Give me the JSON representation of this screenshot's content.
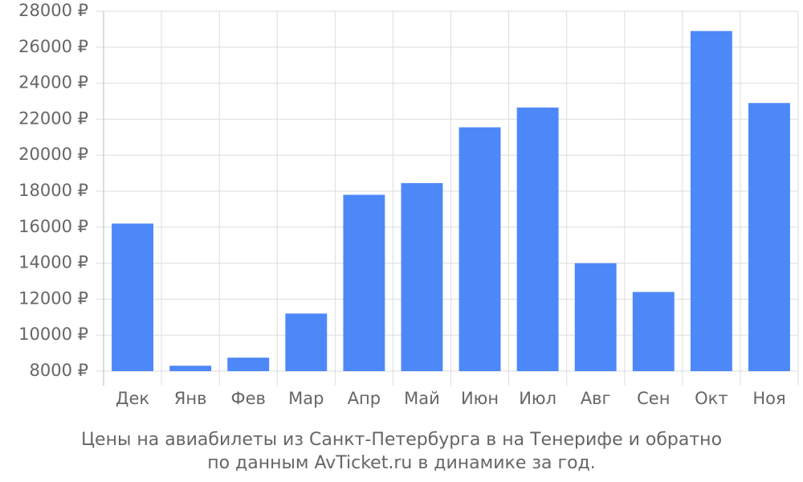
{
  "chart_data": {
    "type": "bar",
    "title": [
      "Цены на авиабилеты из Санкт-Петербурга в на Тенерифе и обратно",
      "по данным AvTicket.ru в динамике за год."
    ],
    "categories": [
      "Дек",
      "Янв",
      "Фев",
      "Мар",
      "Апр",
      "Май",
      "Июн",
      "Июл",
      "Авг",
      "Сен",
      "Окт",
      "Ноя"
    ],
    "values": [
      16200,
      8300,
      8750,
      11200,
      17800,
      18450,
      21550,
      22650,
      14000,
      12400,
      26900,
      22900
    ],
    "color": "#4d88f9",
    "ylim": [
      8000,
      28000
    ],
    "yticks": [
      {
        "value": 8000,
        "label": "8000 ₽"
      },
      {
        "value": 10000,
        "label": "10000 ₽"
      },
      {
        "value": 12000,
        "label": "12000 ₽"
      },
      {
        "value": 14000,
        "label": "14000 ₽"
      },
      {
        "value": 16000,
        "label": "16000 ₽"
      },
      {
        "value": 18000,
        "label": "18000 ₽"
      },
      {
        "value": 20000,
        "label": "20000 ₽"
      },
      {
        "value": 22000,
        "label": "22000 ₽"
      },
      {
        "value": 24000,
        "label": "24000 ₽"
      },
      {
        "value": 26000,
        "label": "26000 ₽"
      },
      {
        "value": 28000,
        "label": "28000 ₽"
      }
    ],
    "grid": true
  }
}
